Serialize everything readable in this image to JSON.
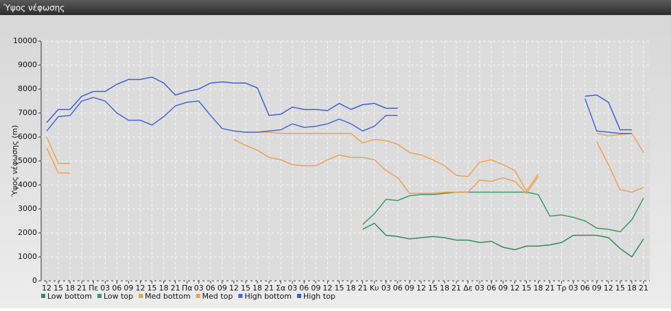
{
  "chart_data": {
    "type": "line",
    "title": "Ύψος νέφωσης",
    "y_label": "Ύψος νέφωσης (m)",
    "categories": [
      "12",
      "15",
      "18",
      "21",
      "Πε",
      "03",
      "06",
      "09",
      "12",
      "15",
      "18",
      "21",
      "Πα",
      "03",
      "06",
      "09",
      "12",
      "15",
      "18",
      "21",
      "Σα",
      "03",
      "06",
      "09",
      "12",
      "15",
      "18",
      "21",
      "Κυ",
      "03",
      "06",
      "09",
      "12",
      "15",
      "18",
      "21",
      "Δε",
      "03",
      "06",
      "09",
      "12",
      "15",
      "18",
      "21",
      "Τρ",
      "03",
      "06",
      "09",
      "12",
      "15",
      "18",
      "21"
    ],
    "ylim": [
      0,
      10000
    ],
    "yticks": [
      0,
      1000,
      2000,
      3000,
      4000,
      5000,
      6000,
      7000,
      8000,
      9000,
      10000
    ],
    "grid": true,
    "series": [
      {
        "name": "Low bottom",
        "color": "#2e8b57",
        "values": [
          null,
          null,
          null,
          null,
          null,
          null,
          null,
          null,
          null,
          null,
          null,
          null,
          null,
          null,
          null,
          null,
          null,
          null,
          null,
          null,
          null,
          null,
          null,
          null,
          null,
          null,
          null,
          2150,
          2400,
          1900,
          1850,
          1750,
          1800,
          1850,
          1800,
          1700,
          1700,
          1600,
          1650,
          1400,
          1300,
          1450,
          1450,
          1500,
          1600,
          1900,
          1900,
          1900,
          1800,
          1350,
          1000,
          1750
        ]
      },
      {
        "name": "Low top",
        "color": "#3a9a68",
        "values": [
          null,
          null,
          null,
          null,
          null,
          null,
          null,
          null,
          null,
          null,
          null,
          null,
          null,
          null,
          null,
          null,
          null,
          null,
          null,
          null,
          null,
          null,
          null,
          null,
          null,
          null,
          null,
          2350,
          2800,
          3400,
          3350,
          3550,
          3600,
          3600,
          3650,
          3700,
          3700,
          3700,
          3700,
          3700,
          3700,
          3700,
          3600,
          2700,
          2750,
          2650,
          2500,
          2200,
          2150,
          2050,
          2550,
          3450
        ]
      },
      {
        "name": "Med bottom",
        "color": "#f0a050",
        "values": [
          5550,
          4500,
          4500,
          null,
          null,
          null,
          null,
          null,
          null,
          null,
          null,
          null,
          null,
          null,
          null,
          null,
          5900,
          5650,
          5450,
          5150,
          5050,
          4850,
          4800,
          4800,
          5050,
          5250,
          5150,
          5150,
          5050,
          4600,
          4300,
          3650,
          3650,
          3650,
          3700,
          3700,
          3700,
          4200,
          4150,
          4300,
          4150,
          3650,
          4350,
          null,
          null,
          null,
          null,
          5800,
          4850,
          3800,
          3700,
          3900
        ]
      },
      {
        "name": "Med top",
        "color": "#f2a24a",
        "values": [
          6000,
          4900,
          4900,
          null,
          null,
          null,
          null,
          null,
          null,
          null,
          null,
          null,
          null,
          null,
          null,
          null,
          6250,
          6200,
          6200,
          6200,
          6150,
          6150,
          6150,
          6150,
          6150,
          6150,
          6150,
          5750,
          5900,
          5850,
          5700,
          5350,
          5250,
          5050,
          4800,
          4400,
          4350,
          4950,
          5050,
          4850,
          4600,
          3750,
          4450,
          null,
          null,
          null,
          null,
          6150,
          6050,
          6100,
          6150,
          5350
        ]
      },
      {
        "name": "High bottom",
        "color": "#4466dd",
        "values": [
          6250,
          6850,
          6900,
          7500,
          7650,
          7500,
          7000,
          6700,
          6700,
          6500,
          6850,
          7300,
          7450,
          7500,
          6900,
          6350,
          6250,
          6200,
          6200,
          6250,
          6300,
          6550,
          6400,
          6450,
          6550,
          6750,
          6550,
          6250,
          6450,
          6900,
          6900,
          null,
          null,
          null,
          null,
          null,
          null,
          null,
          null,
          null,
          null,
          null,
          null,
          null,
          null,
          null,
          7600,
          6250,
          6200,
          6150,
          6150,
          null
        ]
      },
      {
        "name": "High top",
        "color": "#3a5ed6",
        "values": [
          6600,
          7150,
          7150,
          7700,
          7900,
          7900,
          8200,
          8400,
          8400,
          8500,
          8250,
          7750,
          7900,
          8000,
          8250,
          8300,
          8250,
          8250,
          8050,
          6900,
          6950,
          7250,
          7150,
          7150,
          7100,
          7400,
          7150,
          7350,
          7400,
          7200,
          7200,
          null,
          null,
          null,
          null,
          null,
          null,
          null,
          null,
          null,
          null,
          null,
          null,
          null,
          null,
          null,
          7700,
          7750,
          7450,
          6300,
          6300,
          null
        ]
      }
    ]
  }
}
